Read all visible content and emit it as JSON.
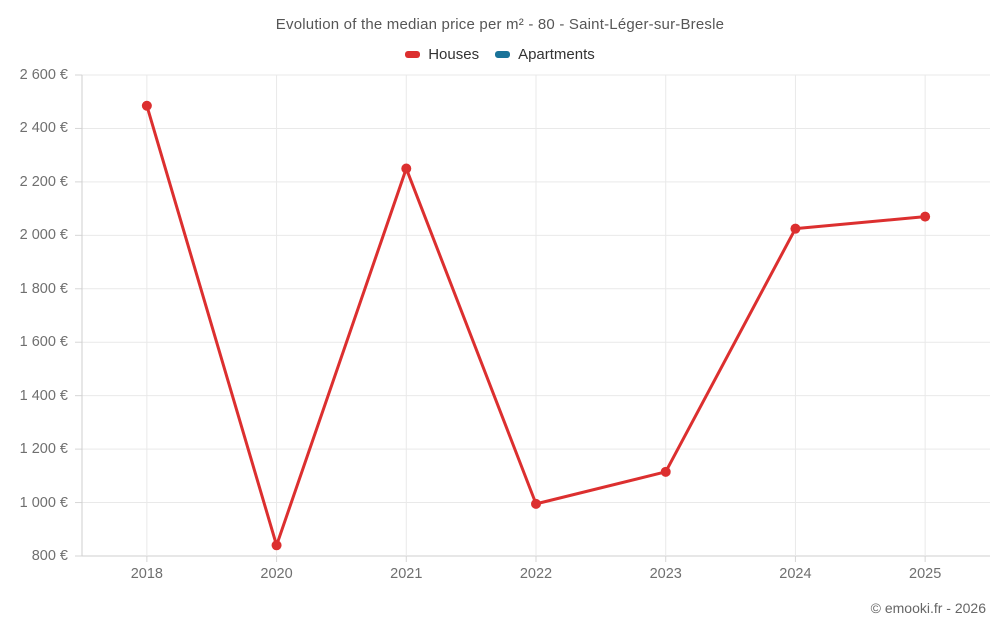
{
  "header": {
    "title": "Evolution of the median price per m² - 80 - Saint-Léger-sur-Bresle"
  },
  "footer": {
    "credit": "© emooki.fr - 2026"
  },
  "chart_data": {
    "type": "line",
    "title": "Evolution of the median price per m² - 80 - Saint-Léger-sur-Bresle",
    "categories": [
      "2018",
      "2020",
      "2021",
      "2022",
      "2023",
      "2024",
      "2025"
    ],
    "series": [
      {
        "name": "Houses",
        "color": "#dc2f2f",
        "values": [
          2485,
          840,
          2250,
          995,
          1115,
          2025,
          2070
        ]
      },
      {
        "name": "Apartments",
        "color": "#1a7399",
        "values": []
      }
    ],
    "xlabel": "",
    "ylabel": "",
    "ylim": [
      800,
      2600
    ],
    "ytick_step": 200,
    "ytick_suffix": " €",
    "grid": true,
    "legend_position": "top",
    "colors": {
      "grid": "#e9e9e9",
      "axis": "#cfcfcf",
      "tick": "#d6d6d6",
      "axis_text": "#6f6f6f",
      "title_text": "#565656"
    }
  }
}
